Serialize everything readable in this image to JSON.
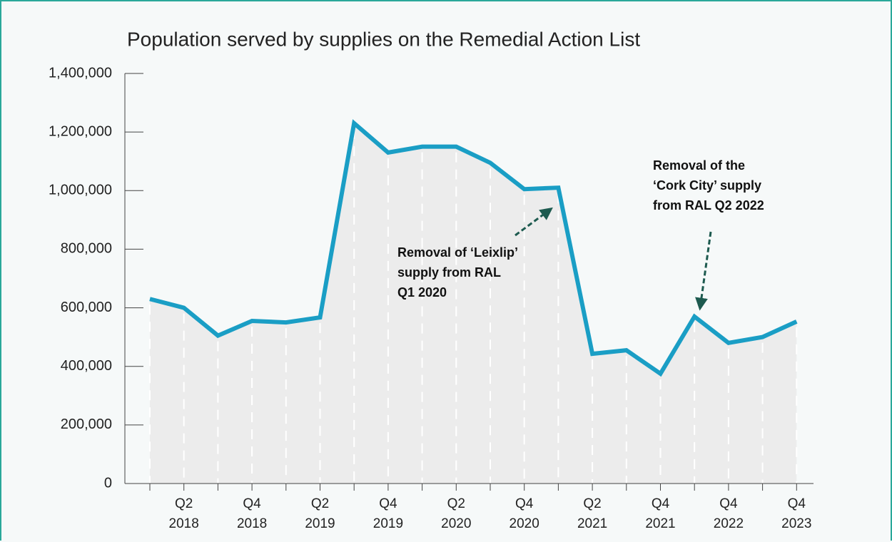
{
  "chart_data": {
    "type": "area-line",
    "title": "Population served by supplies on the Remedial Action List",
    "categories": [
      null,
      "Q2\n2018",
      null,
      "Q4\n2018",
      null,
      "Q2\n2019",
      null,
      "Q4\n2019",
      null,
      "Q2\n2020",
      null,
      "Q4\n2020",
      null,
      "Q2\n2021",
      null,
      "Q4\n2021",
      null,
      "Q4\n2022",
      null,
      "Q4\n2023"
    ],
    "values": [
      630000,
      600000,
      505000,
      555000,
      550000,
      567000,
      1230000,
      1130000,
      1150000,
      1150000,
      1095000,
      1005000,
      1010000,
      443000,
      455000,
      375000,
      570000,
      480000,
      500000,
      553000
    ],
    "color": "#1a9ec5",
    "area_color": "#ececec",
    "ylim": [
      0,
      1400000
    ],
    "yticks": [
      {
        "value": 0,
        "label": "0"
      },
      {
        "value": 200000,
        "label": "200,000"
      },
      {
        "value": 400000,
        "label": "400,000"
      },
      {
        "value": 600000,
        "label": "600,000"
      },
      {
        "value": 800000,
        "label": "800,000"
      },
      {
        "value": 1000000,
        "label": "1,000,000"
      },
      {
        "value": 1200000,
        "label": "1,200,000"
      },
      {
        "value": 1400000,
        "label": "1,400,000"
      }
    ],
    "annotations": [
      "Removal of ‘Leixlip’\nsupply from RAL\nQ1 2020",
      "Removal of the\n‘Cork City’ supply\nfrom RAL Q2 2022"
    ]
  }
}
